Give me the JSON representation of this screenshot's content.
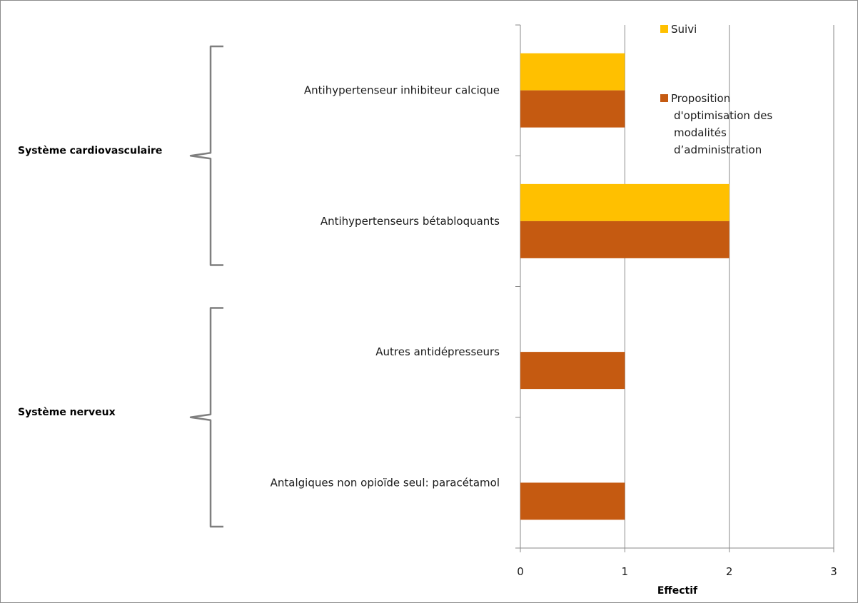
{
  "chart_data": {
    "type": "bar",
    "orientation": "horizontal",
    "categories": [
      "Antihypertenseur inhibiteur calcique",
      "Antihypertenseurs bétabloquants",
      "Autres antidépresseurs",
      "Antalgiques non opioïde seul: paracétamol"
    ],
    "groups": [
      {
        "label": "Système cardiovasculaire",
        "categories": [
          0,
          1
        ]
      },
      {
        "label": "Système nerveux",
        "categories": [
          2,
          3
        ]
      }
    ],
    "series": [
      {
        "name": "Suivi",
        "color": "#FFC000",
        "values": [
          1,
          2,
          0,
          0
        ]
      },
      {
        "name": "Proposition d'optimisation des modalités d’administration",
        "color": "#C55A11",
        "values": [
          1,
          2,
          1,
          1
        ]
      }
    ],
    "legend_lines": [
      [
        "Suivi"
      ],
      [
        "Proposition",
        "d'optimisation des",
        "modalités",
        "d’administration"
      ]
    ],
    "xlabel": "Effectif",
    "xlim": [
      0,
      3
    ],
    "xticks": [
      "0",
      "1",
      "2",
      "3"
    ],
    "grid": true,
    "legend_position": "top-right"
  }
}
